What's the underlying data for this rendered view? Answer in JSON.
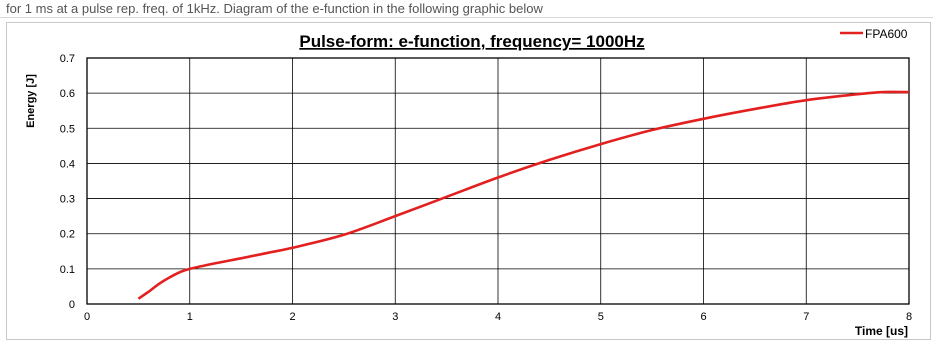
{
  "caption": "for 1 ms at a pulse rep. freq. of 1kHz. Diagram of the e-function in the following graphic below",
  "chart_data": {
    "type": "line",
    "title": "Pulse-form: e-function, frequency= 1000Hz",
    "xlabel": "Time [us]",
    "ylabel": "Energy [J]",
    "xlim": [
      0,
      8
    ],
    "ylim": [
      0,
      0.7
    ],
    "xticks": [
      "0",
      "1",
      "2",
      "3",
      "4",
      "5",
      "6",
      "7",
      "8"
    ],
    "yticks": [
      "0",
      "0.1",
      "0.2",
      "0.3",
      "0.4",
      "0.5",
      "0.6",
      "0.7"
    ],
    "grid": true,
    "legend_position": "top-right",
    "series": [
      {
        "name": "FPA600",
        "color": "#e32020",
        "x": [
          0.5,
          0.6,
          0.7,
          0.8,
          0.9,
          1.0,
          1.25,
          1.5,
          1.75,
          2.0,
          2.5,
          3.0,
          3.5,
          4.0,
          4.5,
          5.0,
          5.5,
          6.0,
          6.5,
          7.0,
          7.5,
          7.75,
          8.0
        ],
        "y": [
          0.015,
          0.035,
          0.057,
          0.075,
          0.09,
          0.1,
          0.116,
          0.13,
          0.145,
          0.16,
          0.197,
          0.25,
          0.305,
          0.36,
          0.41,
          0.455,
          0.495,
          0.527,
          0.555,
          0.58,
          0.597,
          0.603,
          0.603
        ]
      }
    ]
  }
}
